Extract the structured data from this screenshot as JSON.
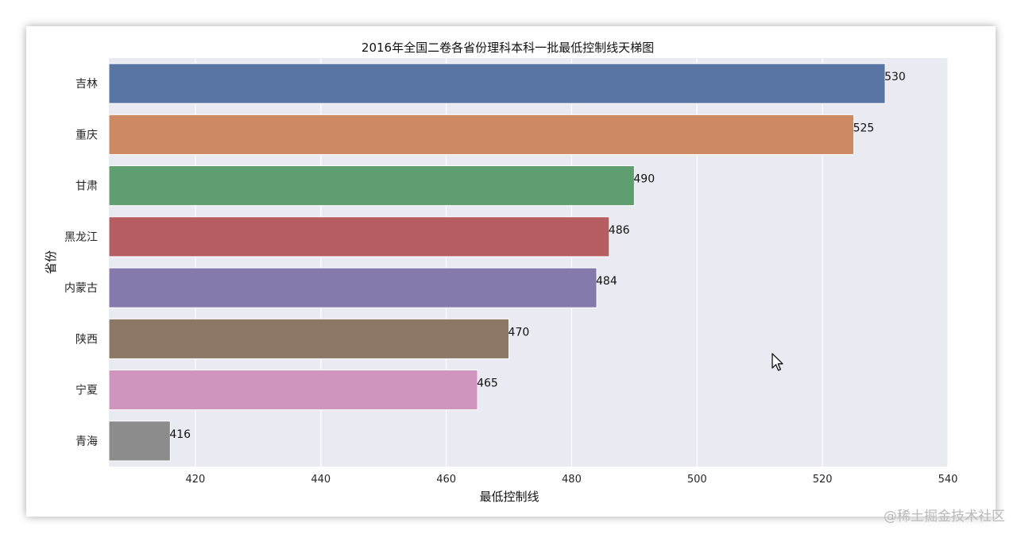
{
  "chart_data": {
    "type": "bar",
    "orientation": "horizontal",
    "title": "2016年全国二卷各省份理科本科一批最低控制线天梯图",
    "xlabel": "最低控制线",
    "ylabel": "省份",
    "categories": [
      "吉林",
      "重庆",
      "甘肃",
      "黑龙江",
      "内蒙古",
      "陕西",
      "宁夏",
      "青海"
    ],
    "values": [
      530,
      525,
      490,
      486,
      484,
      470,
      465,
      416
    ],
    "colors": [
      "#5875a4",
      "#cc8963",
      "#5f9e6e",
      "#b55d60",
      "#857aab",
      "#8d7866",
      "#d095bf",
      "#8c8c8c"
    ],
    "xlim": [
      406.2,
      540
    ],
    "xticks": [
      420,
      440,
      460,
      480,
      500,
      520,
      540
    ],
    "grid": true,
    "background": "#eaeaf2"
  },
  "watermark": "@稀土掘金技术社区",
  "cursor_icon": "mouse-pointer-icon"
}
